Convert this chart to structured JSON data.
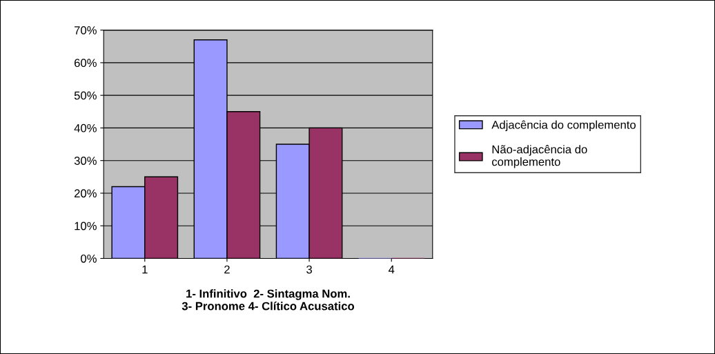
{
  "chart_data": {
    "type": "bar",
    "xlabel": "1- Infinitivo  2- Sintagma Nom.\n3- Pronome 4- Clítico Acusatico",
    "categories": [
      "1",
      "2",
      "3",
      "4"
    ],
    "series": [
      {
        "name": "Adjacência do complemento",
        "color": "#9999ff",
        "values": [
          22,
          67,
          35,
          0
        ]
      },
      {
        "name": "Não-adjacência do\ncomplemento",
        "color": "#993366",
        "values": [
          25,
          45,
          40,
          0
        ]
      }
    ],
    "ylim": [
      0,
      70
    ],
    "yticks": [
      {
        "value": 0,
        "label": "0%"
      },
      {
        "value": 10,
        "label": "10%"
      },
      {
        "value": 20,
        "label": "20%"
      },
      {
        "value": 30,
        "label": "30%"
      },
      {
        "value": 40,
        "label": "40%"
      },
      {
        "value": 50,
        "label": "50%"
      },
      {
        "value": 60,
        "label": "60%"
      },
      {
        "value": 70,
        "label": "70%"
      }
    ],
    "grid": "y",
    "legend": "right"
  }
}
